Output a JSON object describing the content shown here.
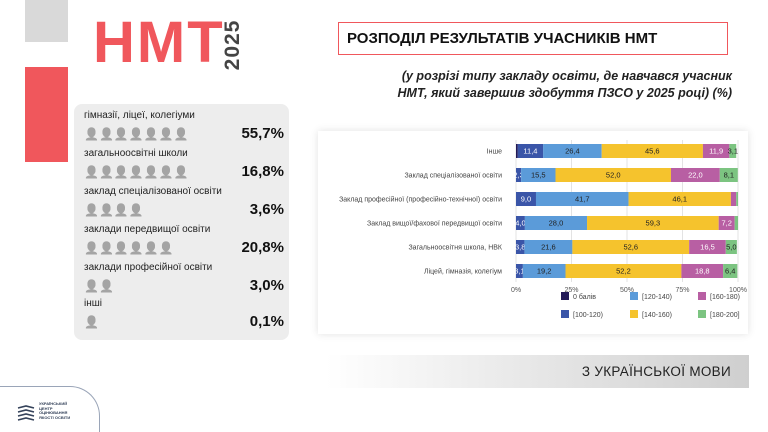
{
  "header": {
    "brand": "НМТ",
    "year": "2025"
  },
  "title": "РОЗПОДІЛ РЕЗУЛЬТАТІВ УЧАСНИКІВ НМТ",
  "subtitle_line1": "(у розрізі типу закладу освіти, де навчався учасник",
  "subtitle_line2": "НМТ, який завершив здобуття ПЗСО  у 2025 році) (%)",
  "stats": [
    {
      "label": "гімназії, ліцеї, колегіуми",
      "value": "55,7%",
      "icons": 7
    },
    {
      "label": "загальноосвітні школи",
      "value": "16,8%",
      "icons": 7
    },
    {
      "label": "заклад спеціалізованої освіти",
      "value": "3,6%",
      "icons": 4
    },
    {
      "label": "заклади передвищої освіти",
      "value": "20,8%",
      "icons": 6
    },
    {
      "label": "заклади професійної освіти",
      "value": "3,0%",
      "icons": 2
    },
    {
      "label": "інші",
      "value": "0,1%",
      "icons": 1
    }
  ],
  "chart_data": {
    "type": "bar",
    "orientation": "horizontal-stacked-100",
    "categories": [
      "Інше",
      "Заклад спеціалізованої освіти",
      "Заклад професійної (професійно-технічної) освіти",
      "Заклад вищої/фахової передвищої освіти",
      "Загальноосвітня школа, НВК",
      "Ліцей, гімназія, колегіум"
    ],
    "series": [
      {
        "name": "0 балів",
        "color": "#221a57",
        "values": [
          0.8,
          0,
          0,
          0,
          0,
          0
        ]
      },
      {
        "name": "[100-120)",
        "color": "#3a55a8",
        "values": [
          11.4,
          2.3,
          9.0,
          4.0,
          3.8,
          3.1
        ]
      },
      {
        "name": "[120-140)",
        "color": "#5b9bd9",
        "values": [
          26.4,
          15.5,
          41.7,
          28.0,
          21.6,
          19.2
        ]
      },
      {
        "name": "[140-160)",
        "color": "#f5c32d",
        "values": [
          45.6,
          52.0,
          46.1,
          59.3,
          52.6,
          52.2
        ]
      },
      {
        "name": "[160-180)",
        "color": "#b85fa3",
        "values": [
          11.9,
          22.0,
          2.4,
          7.2,
          16.5,
          18.8
        ]
      },
      {
        "name": "[180-200]",
        "color": "#7cc481",
        "values": [
          3.1,
          8.1,
          0.8,
          1.5,
          5.0,
          6.4
        ]
      }
    ],
    "data_labels": [
      [
        "",
        "11,4",
        "26,4",
        "45,6",
        "11,9",
        "3,1"
      ],
      [
        "",
        "2,3",
        "15,5",
        "52,0",
        "22,0",
        "8,1"
      ],
      [
        "",
        "9,0",
        "41,7",
        "46,1",
        "",
        ""
      ],
      [
        "",
        "4,0",
        "28,0",
        "59,3",
        "7,2",
        ""
      ],
      [
        "",
        "3,8",
        "21,6",
        "52,6",
        "16,5",
        "5,0"
      ],
      [
        "",
        "3,1",
        "19,2",
        "52,2",
        "18,8",
        "6,4"
      ]
    ],
    "xticks": [
      "0%",
      "25%",
      "50%",
      "75%",
      "100%"
    ],
    "xlim": [
      0,
      100
    ],
    "legend_position": "bottom",
    "legend_order": [
      "0 балів",
      "[100-120)",
      "[120-140)",
      "[140-160)",
      "[160-180)",
      "[180-200]"
    ]
  },
  "footer": {
    "subject": "З УКРАЇНСЬКОЇ МОВИ"
  },
  "logo": {
    "line1": "УКРАЇНСЬКИЙ",
    "line2": "ЦЕНТР",
    "line3": "ОЦІНЮВАННЯ",
    "line4": "ЯКОСТІ ОСВІТИ"
  }
}
